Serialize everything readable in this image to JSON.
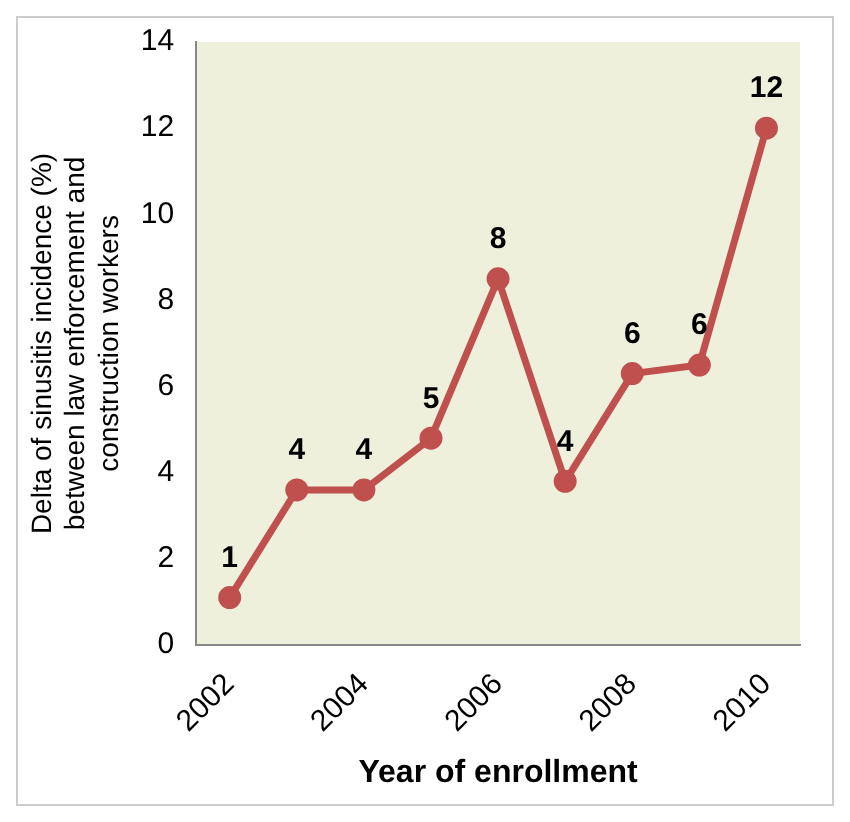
{
  "chart_data": {
    "type": "line",
    "xlabel": "Year of enrollment",
    "ylabel": "Delta of sinusitis incidence (%) between law enforcement and construction workers",
    "x": [
      2002,
      2003,
      2004,
      2005,
      2006,
      2007,
      2008,
      2009,
      2010
    ],
    "series": [
      {
        "color": "#c0504d",
        "values": [
          1.1,
          3.6,
          3.6,
          4.8,
          8.5,
          3.8,
          6.3,
          6.5,
          12.0
        ]
      }
    ],
    "value_labels": [
      "1",
      "4",
      "4",
      "5",
      "8",
      "4",
      "6",
      "6",
      "12"
    ],
    "xlim": [
      2001.5,
      2010.5
    ],
    "xticks": [
      2002,
      2004,
      2006,
      2008,
      2010
    ],
    "ylim": [
      0,
      14
    ],
    "yticks": [
      0,
      2,
      4,
      6,
      8,
      10,
      12,
      14
    ],
    "marker": "circle",
    "line_style": "solid",
    "grid": false,
    "legend": false
  }
}
